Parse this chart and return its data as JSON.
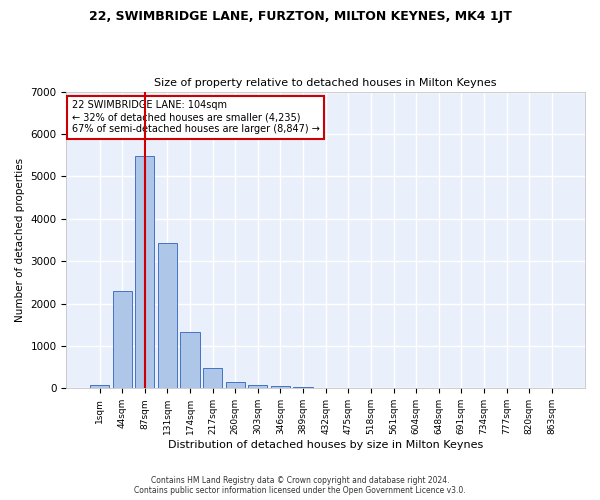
{
  "title": "22, SWIMBRIDGE LANE, FURZTON, MILTON KEYNES, MK4 1JT",
  "subtitle": "Size of property relative to detached houses in Milton Keynes",
  "xlabel": "Distribution of detached houses by size in Milton Keynes",
  "ylabel": "Number of detached properties",
  "footer_line1": "Contains HM Land Registry data © Crown copyright and database right 2024.",
  "footer_line2": "Contains public sector information licensed under the Open Government Licence v3.0.",
  "bar_labels": [
    "1sqm",
    "44sqm",
    "87sqm",
    "131sqm",
    "174sqm",
    "217sqm",
    "260sqm",
    "303sqm",
    "346sqm",
    "389sqm",
    "432sqm",
    "475sqm",
    "518sqm",
    "561sqm",
    "604sqm",
    "648sqm",
    "691sqm",
    "734sqm",
    "777sqm",
    "820sqm",
    "863sqm"
  ],
  "bar_values": [
    80,
    2300,
    5480,
    3430,
    1320,
    470,
    160,
    90,
    55,
    30,
    10,
    5,
    3,
    2,
    1,
    1,
    0,
    0,
    0,
    0,
    0
  ],
  "bar_color": "#aec6e8",
  "bar_edge_color": "#4472c4",
  "bg_color": "#eaf0fb",
  "grid_color": "#ffffff",
  "vline_x": 2,
  "vline_color": "#cc0000",
  "annotation_text": "22 SWIMBRIDGE LANE: 104sqm\n← 32% of detached houses are smaller (4,235)\n67% of semi-detached houses are larger (8,847) →",
  "annotation_box_color": "#cc0000",
  "ylim": [
    0,
    7000
  ],
  "yticks": [
    0,
    1000,
    2000,
    3000,
    4000,
    5000,
    6000,
    7000
  ]
}
